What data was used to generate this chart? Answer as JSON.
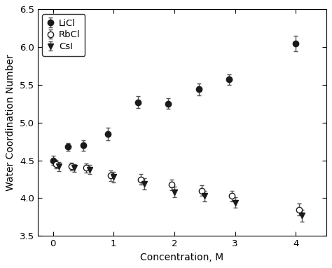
{
  "title": "",
  "xlabel": "Concentration, M",
  "ylabel": "Water Coordination Number",
  "xlim": [
    -0.25,
    4.5
  ],
  "ylim": [
    3.5,
    6.5
  ],
  "xticks": [
    0,
    1,
    2,
    3,
    4
  ],
  "yticks": [
    3.5,
    4.0,
    4.5,
    5.0,
    5.5,
    6.0,
    6.5
  ],
  "LiCl": {
    "x": [
      0.0,
      0.25,
      0.5,
      0.9,
      1.4,
      1.9,
      2.4,
      2.9,
      4.0
    ],
    "y": [
      4.5,
      4.68,
      4.7,
      4.85,
      5.27,
      5.25,
      5.44,
      5.57,
      6.05
    ],
    "yerr": [
      0.06,
      0.05,
      0.07,
      0.08,
      0.08,
      0.07,
      0.08,
      0.07,
      0.1
    ],
    "marker": "o",
    "fillstyle": "full",
    "mfc": "#1a1a1a",
    "mec": "#1a1a1a",
    "ecolor": "#555555",
    "label": "LiCl"
  },
  "RbCl": {
    "x": [
      0.05,
      0.3,
      0.55,
      0.95,
      1.45,
      1.95,
      2.45,
      2.95,
      4.05
    ],
    "y": [
      4.45,
      4.42,
      4.4,
      4.3,
      4.25,
      4.18,
      4.1,
      4.03,
      3.85
    ],
    "yerr": [
      0.06,
      0.05,
      0.06,
      0.07,
      0.07,
      0.07,
      0.07,
      0.07,
      0.08
    ],
    "marker": "o",
    "fillstyle": "none",
    "mfc": "white",
    "mec": "#1a1a1a",
    "ecolor": "#555555",
    "label": "RbCl"
  },
  "CsI": {
    "x": [
      0.1,
      0.35,
      0.6,
      1.0,
      1.5,
      2.0,
      2.5,
      3.0,
      4.1
    ],
    "y": [
      4.42,
      4.4,
      4.38,
      4.28,
      4.19,
      4.08,
      4.03,
      3.94,
      3.77
    ],
    "yerr": [
      0.06,
      0.05,
      0.06,
      0.07,
      0.07,
      0.07,
      0.07,
      0.07,
      0.08
    ],
    "marker": "v",
    "fillstyle": "full",
    "mfc": "#1a1a1a",
    "mec": "#1a1a1a",
    "ecolor": "#555555",
    "label": "CsI"
  },
  "legend_loc": "upper left",
  "figsize": [
    4.74,
    3.82
  ],
  "dpi": 100,
  "markersize": 6,
  "capsize": 2.5,
  "elinewidth": 1.0,
  "markeredgewidth": 1.0,
  "background_color": "#ffffff"
}
